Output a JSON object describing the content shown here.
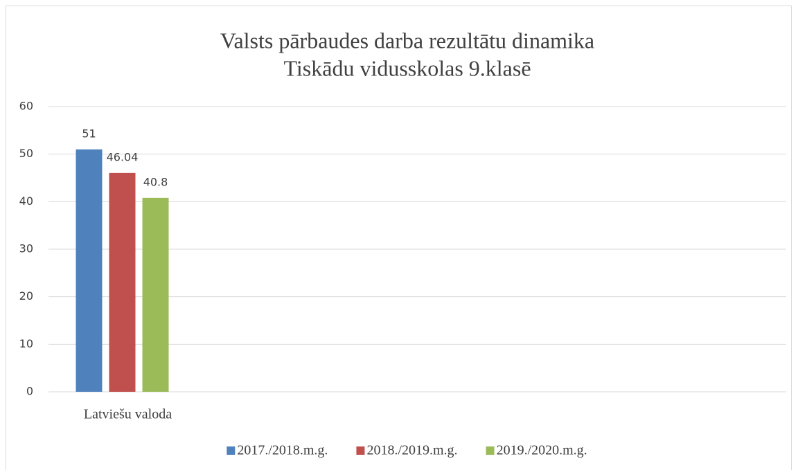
{
  "chart_data": {
    "type": "bar",
    "title": "Valsts pārbaudes darba rezultātu dinamika",
    "subtitle": "Tiskādu vidusskolas 9.klasē",
    "categories": [
      "Latviešu valoda",
      null,
      null,
      null,
      null
    ],
    "series": [
      {
        "name": "2017./2018.m.g.",
        "color": "#4f81bd",
        "values": [
          51,
          null,
          null,
          null,
          null
        ]
      },
      {
        "name": "2018./2019.m.g.",
        "color": "#c0504d",
        "values": [
          46.04,
          null,
          null,
          null,
          null
        ]
      },
      {
        "name": "2019./2020.m.g.",
        "color": "#9bbb59",
        "values": [
          40.8,
          null,
          null,
          null,
          null
        ]
      }
    ],
    "ylim": [
      0,
      60
    ],
    "yticks": [
      0,
      10,
      20,
      30,
      40,
      50,
      60
    ],
    "grid": true,
    "legend": "bottom"
  }
}
